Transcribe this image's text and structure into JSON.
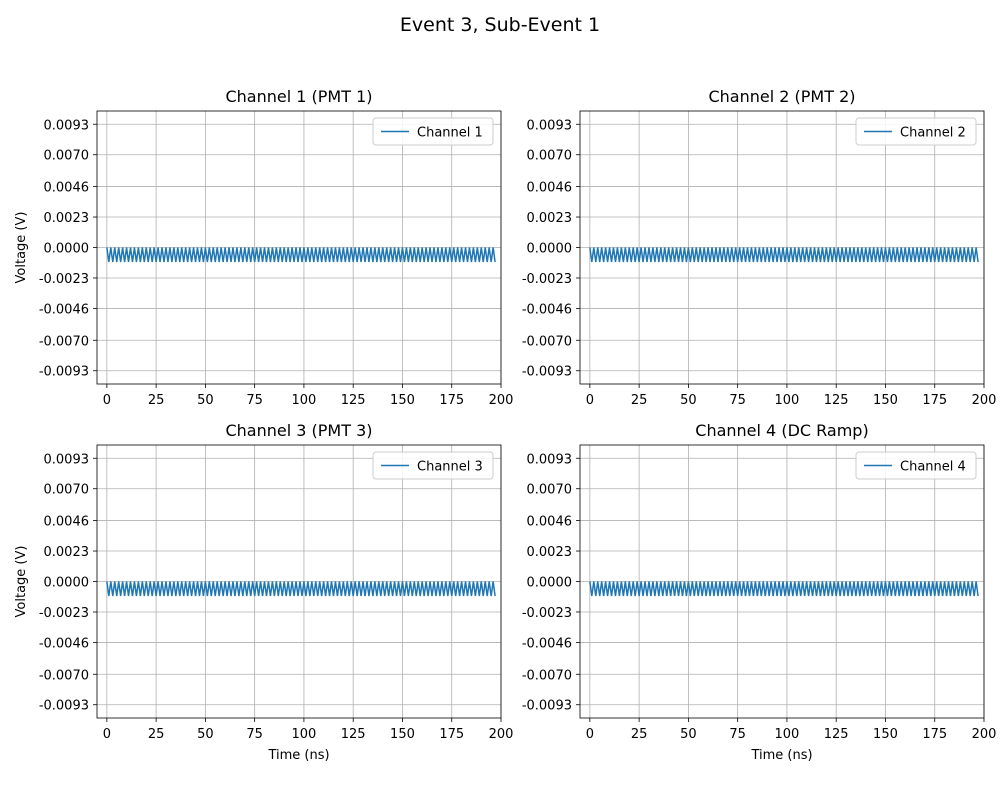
{
  "figure": {
    "title": "Event 3, Sub-Event 1"
  },
  "chart_data": [
    {
      "type": "line",
      "title": "Channel 1 (PMT 1)",
      "xlabel": "",
      "ylabel": "Voltage (V)",
      "xlim": [
        -5,
        200
      ],
      "ylim": [
        -0.0103,
        0.0103
      ],
      "xticks": [
        0,
        25,
        50,
        75,
        100,
        125,
        150,
        175,
        200
      ],
      "xtick_labels": [
        "0",
        "25",
        "50",
        "75",
        "100",
        "125",
        "150",
        "175",
        "200"
      ],
      "yticks": [
        0.0093,
        0.007,
        0.0046,
        0.0023,
        0.0,
        -0.0023,
        -0.0046,
        -0.007,
        -0.0093
      ],
      "ytick_labels": [
        "0.0093",
        "0.0070",
        "0.0046",
        "0.0023",
        "0.0000",
        "-0.0023",
        "-0.0046",
        "-0.0070",
        "-0.0093"
      ],
      "grid": true,
      "legend": "upper right",
      "series": [
        {
          "name": "Channel 1",
          "color": "#1f77b4",
          "signal": {
            "type": "square-wave",
            "x_start": 0,
            "x_end": 197,
            "period": 2,
            "high": 0.0,
            "low": -0.0011
          }
        }
      ]
    },
    {
      "type": "line",
      "title": "Channel 2 (PMT 2)",
      "xlabel": "",
      "ylabel": "",
      "xlim": [
        -5,
        200
      ],
      "ylim": [
        -0.0103,
        0.0103
      ],
      "xticks": [
        0,
        25,
        50,
        75,
        100,
        125,
        150,
        175,
        200
      ],
      "xtick_labels": [
        "0",
        "25",
        "50",
        "75",
        "100",
        "125",
        "150",
        "175",
        "200"
      ],
      "yticks": [
        0.0093,
        0.007,
        0.0046,
        0.0023,
        0.0,
        -0.0023,
        -0.0046,
        -0.007,
        -0.0093
      ],
      "ytick_labels": [
        "0.0093",
        "0.0070",
        "0.0046",
        "0.0023",
        "0.0000",
        "-0.0023",
        "-0.0046",
        "-0.0070",
        "-0.0093"
      ],
      "grid": true,
      "legend": "upper right",
      "series": [
        {
          "name": "Channel 2",
          "color": "#1f77b4",
          "signal": {
            "type": "square-wave",
            "x_start": 0,
            "x_end": 197,
            "period": 2,
            "high": 0.0,
            "low": -0.0011
          }
        }
      ]
    },
    {
      "type": "line",
      "title": "Channel 3 (PMT 3)",
      "xlabel": "Time (ns)",
      "ylabel": "Voltage (V)",
      "xlim": [
        -5,
        200
      ],
      "ylim": [
        -0.0103,
        0.0103
      ],
      "xticks": [
        0,
        25,
        50,
        75,
        100,
        125,
        150,
        175,
        200
      ],
      "xtick_labels": [
        "0",
        "25",
        "50",
        "75",
        "100",
        "125",
        "150",
        "175",
        "200"
      ],
      "yticks": [
        0.0093,
        0.007,
        0.0046,
        0.0023,
        0.0,
        -0.0023,
        -0.0046,
        -0.007,
        -0.0093
      ],
      "ytick_labels": [
        "0.0093",
        "0.0070",
        "0.0046",
        "0.0023",
        "0.0000",
        "-0.0023",
        "-0.0046",
        "-0.0070",
        "-0.0093"
      ],
      "grid": true,
      "legend": "upper right",
      "series": [
        {
          "name": "Channel 3",
          "color": "#1f77b4",
          "signal": {
            "type": "square-wave",
            "x_start": 0,
            "x_end": 197,
            "period": 2,
            "high": 0.0,
            "low": -0.0011
          }
        }
      ]
    },
    {
      "type": "line",
      "title": "Channel 4 (DC Ramp)",
      "xlabel": "Time (ns)",
      "ylabel": "",
      "xlim": [
        -5,
        200
      ],
      "ylim": [
        -0.0103,
        0.0103
      ],
      "xticks": [
        0,
        25,
        50,
        75,
        100,
        125,
        150,
        175,
        200
      ],
      "xtick_labels": [
        "0",
        "25",
        "50",
        "75",
        "100",
        "125",
        "150",
        "175",
        "200"
      ],
      "yticks": [
        0.0093,
        0.007,
        0.0046,
        0.0023,
        0.0,
        -0.0023,
        -0.0046,
        -0.007,
        -0.0093
      ],
      "ytick_labels": [
        "0.0093",
        "0.0070",
        "0.0046",
        "0.0023",
        "0.0000",
        "-0.0023",
        "-0.0046",
        "-0.0070",
        "-0.0093"
      ],
      "grid": true,
      "legend": "upper right",
      "series": [
        {
          "name": "Channel 4",
          "color": "#1f77b4",
          "signal": {
            "type": "square-wave",
            "x_start": 0,
            "x_end": 197,
            "period": 2,
            "high": 0.0,
            "low": -0.0011
          }
        }
      ]
    }
  ]
}
